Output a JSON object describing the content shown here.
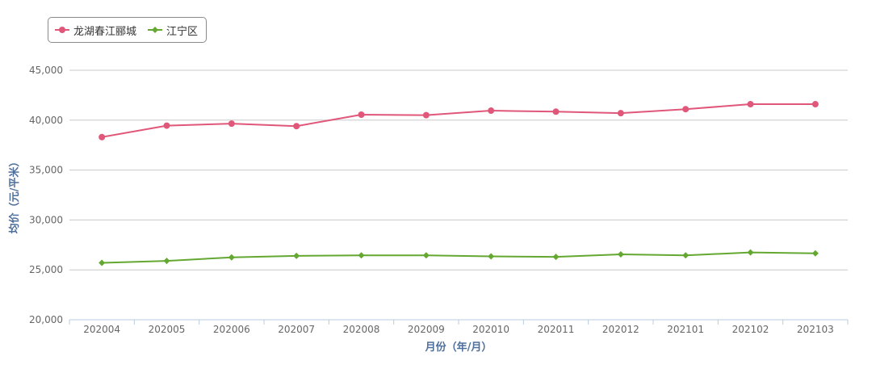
{
  "chart_data": {
    "type": "line",
    "categories": [
      "202004",
      "202005",
      "202006",
      "202007",
      "202008",
      "202009",
      "202010",
      "202011",
      "202012",
      "202101",
      "202102",
      "202103"
    ],
    "series": [
      {
        "name": "龙湖春江郦城",
        "color": "#e0577a",
        "marker": "circle",
        "values": [
          38300,
          39450,
          39650,
          39400,
          40550,
          40500,
          40950,
          40850,
          40700,
          41100,
          41600,
          41600
        ]
      },
      {
        "name": "江宁区",
        "color": "#64a832",
        "marker": "diamond",
        "values": [
          25700,
          25900,
          26250,
          26400,
          26450,
          26450,
          26350,
          26300,
          26550,
          26450,
          26750,
          26650
        ]
      }
    ],
    "ylim": [
      20000,
      45000
    ],
    "yticks": [
      "20,000",
      "25,000",
      "30,000",
      "35,000",
      "40,000",
      "45,000"
    ],
    "xlabel": "月份（年/月）",
    "ylabel": "均价（元/平米）",
    "legend_position": "top-left",
    "grid": true
  },
  "colors": {
    "axis_title": "#4f6f9b",
    "tick_label": "#666666",
    "grid": "#c8c8c8",
    "x_axis": "#b7cce3"
  }
}
